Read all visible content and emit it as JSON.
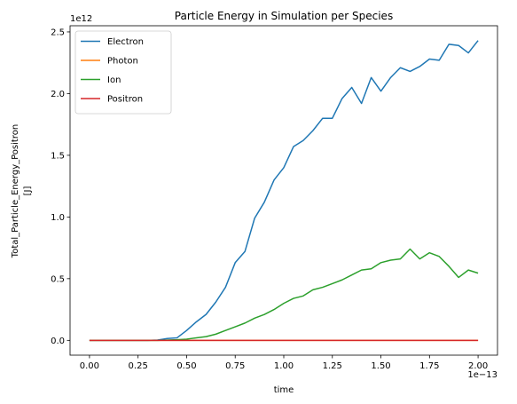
{
  "chart_data": {
    "type": "line",
    "title": "Particle Energy in Simulation per Species",
    "xlabel": "time",
    "ylabel_line1": "Total_Particle_Energy_Positron",
    "ylabel_line2": "[J]",
    "x_offset_text": "1e−13",
    "y_offset_text": "1e12",
    "xlim": [
      -1e-14,
      2.1e-13
    ],
    "ylim": [
      -120000000000.0,
      2550000000000.0
    ],
    "x_ticks": [
      0,
      2.5e-14,
      5e-14,
      7.5e-14,
      1e-13,
      1.25e-13,
      1.5e-13,
      1.75e-13,
      2e-13
    ],
    "x_tick_labels": [
      "0.00",
      "0.25",
      "0.50",
      "0.75",
      "1.00",
      "1.25",
      "1.50",
      "1.75",
      "2.00"
    ],
    "y_ticks": [
      0,
      500000000000.0,
      1000000000000.0,
      1500000000000.0,
      2000000000000.0,
      2500000000000.0
    ],
    "y_tick_labels": [
      "0.0",
      "0.5",
      "1.0",
      "1.5",
      "2.0",
      "2.5"
    ],
    "grid": false,
    "legend_position": "top-left",
    "x": [
      0,
      5e-15,
      1e-14,
      1.5e-14,
      2e-14,
      2.5e-14,
      3e-14,
      3.5e-14,
      4e-14,
      4.5e-14,
      5e-14,
      5.5e-14,
      6e-14,
      6.5e-14,
      7e-14,
      7.5e-14,
      8e-14,
      8.5e-14,
      9e-14,
      9.5e-14,
      1e-13,
      1.05e-13,
      1.1e-13,
      1.15e-13,
      1.2e-13,
      1.25e-13,
      1.3e-13,
      1.35e-13,
      1.4e-13,
      1.45e-13,
      1.5e-13,
      1.55e-13,
      1.6e-13,
      1.65e-13,
      1.7e-13,
      1.75e-13,
      1.8e-13,
      1.85e-13,
      1.9e-13,
      1.95e-13,
      2e-13
    ],
    "series": [
      {
        "name": "Electron",
        "color": "#1f77b4",
        "values": [
          0,
          0,
          0,
          0,
          0,
          0,
          0,
          2000000000.0,
          15000000000.0,
          20000000000.0,
          80000000000.0,
          150000000000.0,
          210000000000.0,
          310000000000.0,
          430000000000.0,
          630000000000.0,
          720000000000.0,
          990000000000.0,
          1120000000000.0,
          1300000000000.0,
          1400000000000.0,
          1570000000000.0,
          1620000000000.0,
          1700000000000.0,
          1800000000000.0,
          1800000000000.0,
          1960000000000.0,
          2050000000000.0,
          1920000000000.0,
          2130000000000.0,
          2020000000000.0,
          2130000000000.0,
          2210000000000.0,
          2180000000000.0,
          2220000000000.0,
          2280000000000.0,
          2270000000000.0,
          2400000000000.0,
          2390000000000.0,
          2330000000000.0,
          2430000000000.0
        ]
      },
      {
        "name": "Photon",
        "color": "#ff7f0e",
        "values": [
          0,
          0,
          0,
          0,
          0,
          0,
          0,
          0,
          0,
          0,
          0,
          0,
          0,
          0,
          0,
          0,
          0,
          0,
          0,
          0,
          0,
          0,
          0,
          0,
          0,
          0,
          0,
          0,
          0,
          0,
          0,
          0,
          0,
          0,
          0,
          0,
          0,
          0,
          0,
          0,
          0
        ]
      },
      {
        "name": "Ion",
        "color": "#2ca02c",
        "values": [
          0,
          0,
          0,
          0,
          0,
          0,
          0,
          0,
          2000000000.0,
          5000000000.0,
          10000000000.0,
          20000000000.0,
          30000000000.0,
          50000000000.0,
          80000000000.0,
          110000000000.0,
          140000000000.0,
          180000000000.0,
          210000000000.0,
          250000000000.0,
          300000000000.0,
          340000000000.0,
          360000000000.0,
          410000000000.0,
          430000000000.0,
          460000000000.0,
          490000000000.0,
          530000000000.0,
          570000000000.0,
          580000000000.0,
          630000000000.0,
          650000000000.0,
          660000000000.0,
          740000000000.0,
          660000000000.0,
          710000000000.0,
          680000000000.0,
          600000000000.0,
          510000000000.0,
          570000000000.0,
          545000000000.0
        ]
      },
      {
        "name": "Positron",
        "color": "#d62728",
        "values": [
          0,
          0,
          0,
          0,
          0,
          0,
          0,
          0,
          0,
          0,
          0,
          0,
          0,
          0,
          0,
          0,
          0,
          0,
          0,
          0,
          0,
          0,
          0,
          0,
          0,
          0,
          0,
          0,
          0,
          0,
          0,
          0,
          0,
          0,
          0,
          0,
          0,
          0,
          0,
          0,
          0
        ]
      }
    ]
  }
}
